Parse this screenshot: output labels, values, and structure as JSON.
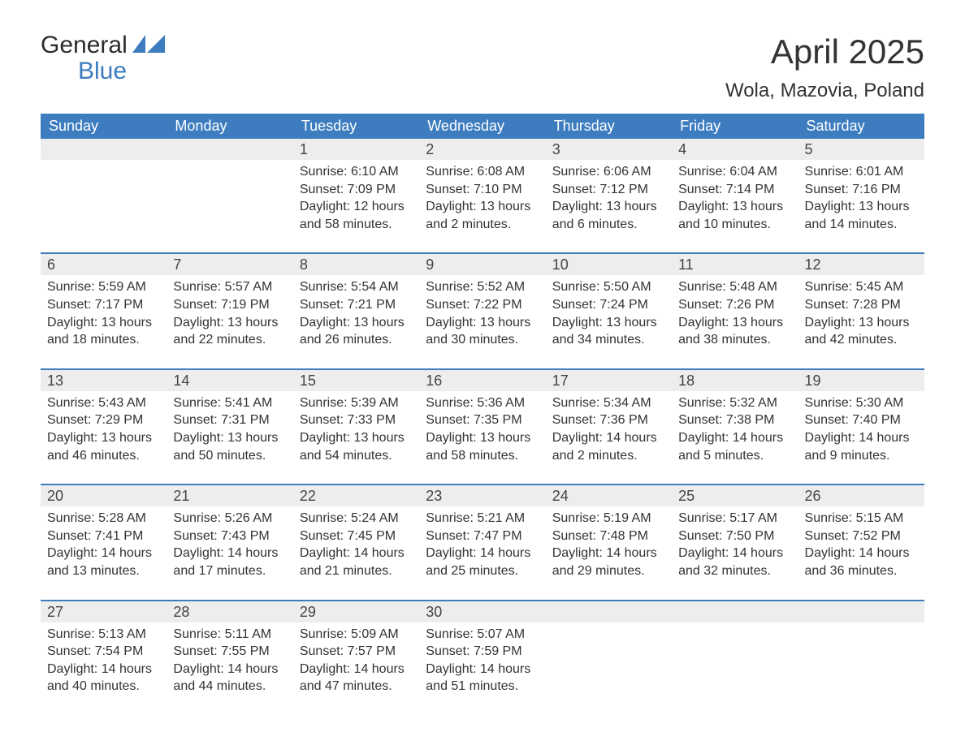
{
  "brand": {
    "general": "General",
    "blue": "Blue"
  },
  "title": "April 2025",
  "location": "Wola, Mazovia, Poland",
  "colors": {
    "header_bg": "#3d7dbf",
    "header_text": "#ffffff",
    "daynum_bg": "#ededed",
    "border": "#3d7dbf",
    "text": "#333333",
    "background": "#ffffff"
  },
  "columns": [
    "Sunday",
    "Monday",
    "Tuesday",
    "Wednesday",
    "Thursday",
    "Friday",
    "Saturday"
  ],
  "weeks": [
    [
      {
        "day": "",
        "sunrise": "",
        "sunset": "",
        "daylight": ""
      },
      {
        "day": "",
        "sunrise": "",
        "sunset": "",
        "daylight": ""
      },
      {
        "day": "1",
        "sunrise": "Sunrise: 6:10 AM",
        "sunset": "Sunset: 7:09 PM",
        "daylight": "Daylight: 12 hours and 58 minutes."
      },
      {
        "day": "2",
        "sunrise": "Sunrise: 6:08 AM",
        "sunset": "Sunset: 7:10 PM",
        "daylight": "Daylight: 13 hours and 2 minutes."
      },
      {
        "day": "3",
        "sunrise": "Sunrise: 6:06 AM",
        "sunset": "Sunset: 7:12 PM",
        "daylight": "Daylight: 13 hours and 6 minutes."
      },
      {
        "day": "4",
        "sunrise": "Sunrise: 6:04 AM",
        "sunset": "Sunset: 7:14 PM",
        "daylight": "Daylight: 13 hours and 10 minutes."
      },
      {
        "day": "5",
        "sunrise": "Sunrise: 6:01 AM",
        "sunset": "Sunset: 7:16 PM",
        "daylight": "Daylight: 13 hours and 14 minutes."
      }
    ],
    [
      {
        "day": "6",
        "sunrise": "Sunrise: 5:59 AM",
        "sunset": "Sunset: 7:17 PM",
        "daylight": "Daylight: 13 hours and 18 minutes."
      },
      {
        "day": "7",
        "sunrise": "Sunrise: 5:57 AM",
        "sunset": "Sunset: 7:19 PM",
        "daylight": "Daylight: 13 hours and 22 minutes."
      },
      {
        "day": "8",
        "sunrise": "Sunrise: 5:54 AM",
        "sunset": "Sunset: 7:21 PM",
        "daylight": "Daylight: 13 hours and 26 minutes."
      },
      {
        "day": "9",
        "sunrise": "Sunrise: 5:52 AM",
        "sunset": "Sunset: 7:22 PM",
        "daylight": "Daylight: 13 hours and 30 minutes."
      },
      {
        "day": "10",
        "sunrise": "Sunrise: 5:50 AM",
        "sunset": "Sunset: 7:24 PM",
        "daylight": "Daylight: 13 hours and 34 minutes."
      },
      {
        "day": "11",
        "sunrise": "Sunrise: 5:48 AM",
        "sunset": "Sunset: 7:26 PM",
        "daylight": "Daylight: 13 hours and 38 minutes."
      },
      {
        "day": "12",
        "sunrise": "Sunrise: 5:45 AM",
        "sunset": "Sunset: 7:28 PM",
        "daylight": "Daylight: 13 hours and 42 minutes."
      }
    ],
    [
      {
        "day": "13",
        "sunrise": "Sunrise: 5:43 AM",
        "sunset": "Sunset: 7:29 PM",
        "daylight": "Daylight: 13 hours and 46 minutes."
      },
      {
        "day": "14",
        "sunrise": "Sunrise: 5:41 AM",
        "sunset": "Sunset: 7:31 PM",
        "daylight": "Daylight: 13 hours and 50 minutes."
      },
      {
        "day": "15",
        "sunrise": "Sunrise: 5:39 AM",
        "sunset": "Sunset: 7:33 PM",
        "daylight": "Daylight: 13 hours and 54 minutes."
      },
      {
        "day": "16",
        "sunrise": "Sunrise: 5:36 AM",
        "sunset": "Sunset: 7:35 PM",
        "daylight": "Daylight: 13 hours and 58 minutes."
      },
      {
        "day": "17",
        "sunrise": "Sunrise: 5:34 AM",
        "sunset": "Sunset: 7:36 PM",
        "daylight": "Daylight: 14 hours and 2 minutes."
      },
      {
        "day": "18",
        "sunrise": "Sunrise: 5:32 AM",
        "sunset": "Sunset: 7:38 PM",
        "daylight": "Daylight: 14 hours and 5 minutes."
      },
      {
        "day": "19",
        "sunrise": "Sunrise: 5:30 AM",
        "sunset": "Sunset: 7:40 PM",
        "daylight": "Daylight: 14 hours and 9 minutes."
      }
    ],
    [
      {
        "day": "20",
        "sunrise": "Sunrise: 5:28 AM",
        "sunset": "Sunset: 7:41 PM",
        "daylight": "Daylight: 14 hours and 13 minutes."
      },
      {
        "day": "21",
        "sunrise": "Sunrise: 5:26 AM",
        "sunset": "Sunset: 7:43 PM",
        "daylight": "Daylight: 14 hours and 17 minutes."
      },
      {
        "day": "22",
        "sunrise": "Sunrise: 5:24 AM",
        "sunset": "Sunset: 7:45 PM",
        "daylight": "Daylight: 14 hours and 21 minutes."
      },
      {
        "day": "23",
        "sunrise": "Sunrise: 5:21 AM",
        "sunset": "Sunset: 7:47 PM",
        "daylight": "Daylight: 14 hours and 25 minutes."
      },
      {
        "day": "24",
        "sunrise": "Sunrise: 5:19 AM",
        "sunset": "Sunset: 7:48 PM",
        "daylight": "Daylight: 14 hours and 29 minutes."
      },
      {
        "day": "25",
        "sunrise": "Sunrise: 5:17 AM",
        "sunset": "Sunset: 7:50 PM",
        "daylight": "Daylight: 14 hours and 32 minutes."
      },
      {
        "day": "26",
        "sunrise": "Sunrise: 5:15 AM",
        "sunset": "Sunset: 7:52 PM",
        "daylight": "Daylight: 14 hours and 36 minutes."
      }
    ],
    [
      {
        "day": "27",
        "sunrise": "Sunrise: 5:13 AM",
        "sunset": "Sunset: 7:54 PM",
        "daylight": "Daylight: 14 hours and 40 minutes."
      },
      {
        "day": "28",
        "sunrise": "Sunrise: 5:11 AM",
        "sunset": "Sunset: 7:55 PM",
        "daylight": "Daylight: 14 hours and 44 minutes."
      },
      {
        "day": "29",
        "sunrise": "Sunrise: 5:09 AM",
        "sunset": "Sunset: 7:57 PM",
        "daylight": "Daylight: 14 hours and 47 minutes."
      },
      {
        "day": "30",
        "sunrise": "Sunrise: 5:07 AM",
        "sunset": "Sunset: 7:59 PM",
        "daylight": "Daylight: 14 hours and 51 minutes."
      },
      {
        "day": "",
        "sunrise": "",
        "sunset": "",
        "daylight": ""
      },
      {
        "day": "",
        "sunrise": "",
        "sunset": "",
        "daylight": ""
      },
      {
        "day": "",
        "sunrise": "",
        "sunset": "",
        "daylight": ""
      }
    ]
  ]
}
